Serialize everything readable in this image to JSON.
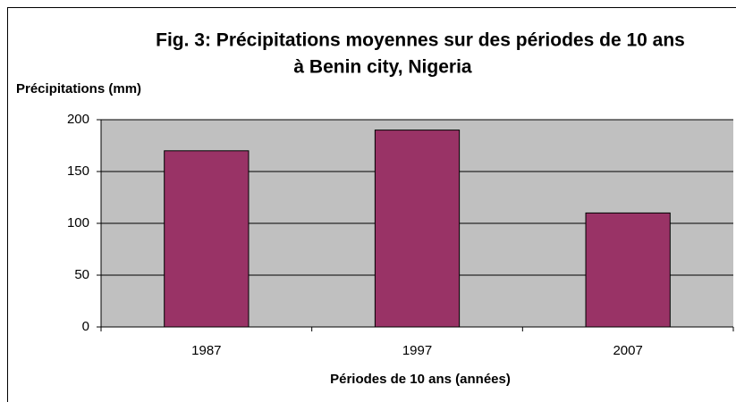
{
  "chart_data": {
    "type": "bar",
    "title": [
      "Fig. 3: Précipitations moyennes sur des périodes de 10 ans",
      "à Benin city, Nigeria"
    ],
    "y_label": "Précipitations (mm)",
    "x_label": "Périodes de 10 ans (années)",
    "categories": [
      "1987",
      "1997",
      "2007"
    ],
    "values": [
      170,
      190,
      110
    ],
    "color": "#993366",
    "ylim": [
      0,
      200
    ],
    "yticks": [
      0,
      50,
      100,
      150,
      200
    ],
    "grid": true
  }
}
